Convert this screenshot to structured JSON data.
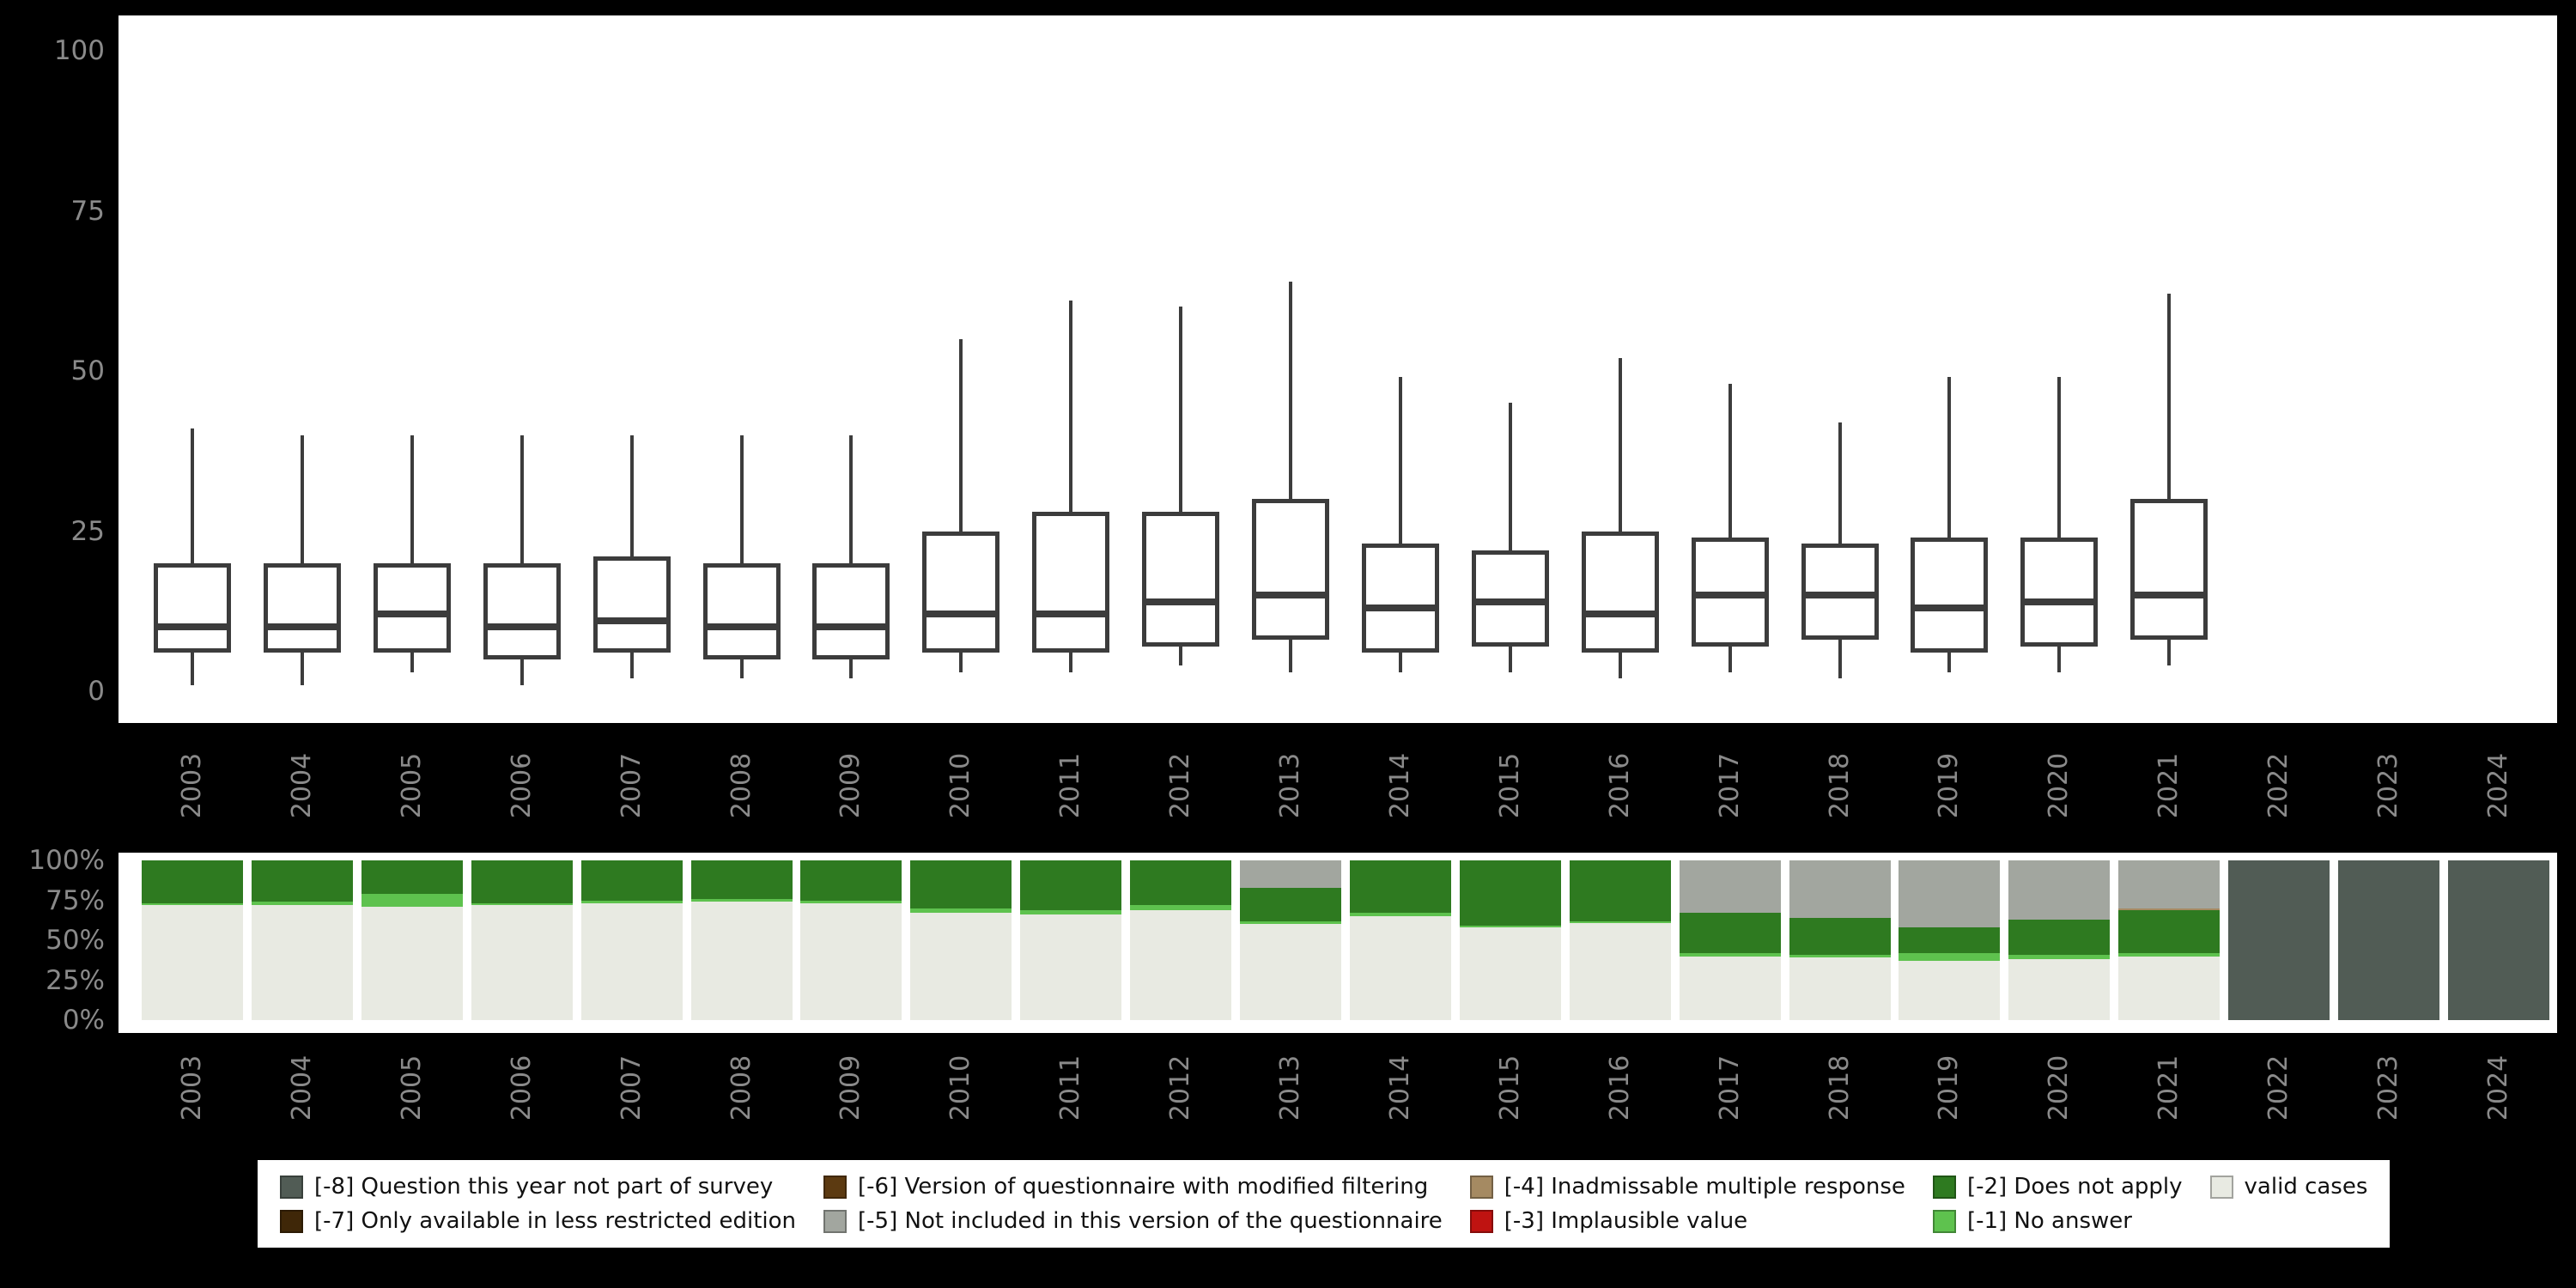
{
  "page": {
    "background": "#000000"
  },
  "colors": {
    "valid": "#e8eae2",
    "no_answer": "#5ec24e",
    "does_not_apply": "#2e7a20",
    "implausible": "#bf1311",
    "inadmissable": "#a58a62",
    "not_included": "#a2a69f",
    "modified_filtering": "#5c3a11",
    "restricted_edition": "#3f2708",
    "not_part_of_survey": "#515c55",
    "box_stroke": "#3c3c3c",
    "axis_text": "#8a8a8a",
    "panel_bg": "#ffffff"
  },
  "chart_data": [
    {
      "type": "boxplot",
      "title": "",
      "xlabel": "",
      "ylabel": "",
      "ylim": [
        0,
        100
      ],
      "yticks": [
        0,
        25,
        50,
        75,
        100
      ],
      "grid": false,
      "categories": [
        "2003",
        "2004",
        "2005",
        "2006",
        "2007",
        "2008",
        "2009",
        "2010",
        "2011",
        "2012",
        "2013",
        "2014",
        "2015",
        "2016",
        "2017",
        "2018",
        "2019",
        "2020",
        "2021",
        "2022",
        "2023",
        "2024"
      ],
      "series": [
        {
          "category": "2003",
          "low": 1,
          "q1": 6,
          "median": 10,
          "q3": 20,
          "high": 41
        },
        {
          "category": "2004",
          "low": 1,
          "q1": 6,
          "median": 10,
          "q3": 20,
          "high": 40
        },
        {
          "category": "2005",
          "low": 3,
          "q1": 6,
          "median": 12,
          "q3": 20,
          "high": 40
        },
        {
          "category": "2006",
          "low": 1,
          "q1": 5,
          "median": 10,
          "q3": 20,
          "high": 40
        },
        {
          "category": "2007",
          "low": 2,
          "q1": 6,
          "median": 11,
          "q3": 21,
          "high": 40
        },
        {
          "category": "2008",
          "low": 2,
          "q1": 5,
          "median": 10,
          "q3": 20,
          "high": 40
        },
        {
          "category": "2009",
          "low": 2,
          "q1": 5,
          "median": 10,
          "q3": 20,
          "high": 40
        },
        {
          "category": "2010",
          "low": 3,
          "q1": 6,
          "median": 12,
          "q3": 25,
          "high": 55
        },
        {
          "category": "2011",
          "low": 3,
          "q1": 6,
          "median": 12,
          "q3": 28,
          "high": 61
        },
        {
          "category": "2012",
          "low": 4,
          "q1": 7,
          "median": 14,
          "q3": 28,
          "high": 60
        },
        {
          "category": "2013",
          "low": 3,
          "q1": 8,
          "median": 15,
          "q3": 30,
          "high": 64
        },
        {
          "category": "2014",
          "low": 3,
          "q1": 6,
          "median": 13,
          "q3": 23,
          "high": 49
        },
        {
          "category": "2015",
          "low": 3,
          "q1": 7,
          "median": 14,
          "q3": 22,
          "high": 45
        },
        {
          "category": "2016",
          "low": 2,
          "q1": 6,
          "median": 12,
          "q3": 25,
          "high": 52
        },
        {
          "category": "2017",
          "low": 3,
          "q1": 7,
          "median": 15,
          "q3": 24,
          "high": 48
        },
        {
          "category": "2018",
          "low": 2,
          "q1": 8,
          "median": 15,
          "q3": 23,
          "high": 42
        },
        {
          "category": "2019",
          "low": 3,
          "q1": 6,
          "median": 13,
          "q3": 24,
          "high": 49
        },
        {
          "category": "2020",
          "low": 3,
          "q1": 7,
          "median": 14,
          "q3": 24,
          "high": 49
        },
        {
          "category": "2021",
          "low": 4,
          "q1": 8,
          "median": 15,
          "q3": 30,
          "high": 62
        },
        null,
        null,
        null
      ]
    },
    {
      "type": "bar",
      "subtype": "stacked-percent",
      "title": "",
      "xlabel": "",
      "ylabel": "",
      "grid": false,
      "yticks": [
        {
          "value": 0,
          "label": "0%"
        },
        {
          "value": 25,
          "label": "25%"
        },
        {
          "value": 50,
          "label": "50%"
        },
        {
          "value": 75,
          "label": "75%"
        },
        {
          "value": 100,
          "label": "100%"
        }
      ],
      "categories": [
        "2003",
        "2004",
        "2005",
        "2006",
        "2007",
        "2008",
        "2009",
        "2010",
        "2011",
        "2012",
        "2013",
        "2014",
        "2015",
        "2016",
        "2017",
        "2018",
        "2019",
        "2020",
        "2021",
        "2022",
        "2023",
        "2024"
      ],
      "stack_order": [
        "valid",
        "no_answer",
        "does_not_apply",
        "implausible",
        "inadmissable",
        "not_included",
        "modified_filtering",
        "restricted_edition",
        "not_part_of_survey"
      ],
      "series": [
        {
          "category": "2003",
          "valid": 72,
          "no_answer": 1,
          "does_not_apply": 27
        },
        {
          "category": "2004",
          "valid": 72,
          "no_answer": 2,
          "does_not_apply": 26
        },
        {
          "category": "2005",
          "valid": 71,
          "no_answer": 8,
          "does_not_apply": 21
        },
        {
          "category": "2006",
          "valid": 72,
          "no_answer": 1,
          "does_not_apply": 27
        },
        {
          "category": "2007",
          "valid": 73,
          "no_answer": 2,
          "does_not_apply": 25
        },
        {
          "category": "2008",
          "valid": 74,
          "no_answer": 2,
          "does_not_apply": 24
        },
        {
          "category": "2009",
          "valid": 73,
          "no_answer": 2,
          "does_not_apply": 25
        },
        {
          "category": "2010",
          "valid": 67,
          "no_answer": 3,
          "does_not_apply": 30
        },
        {
          "category": "2011",
          "valid": 66,
          "no_answer": 3,
          "does_not_apply": 31
        },
        {
          "category": "2012",
          "valid": 69,
          "no_answer": 3,
          "does_not_apply": 28
        },
        {
          "category": "2013",
          "valid": 60,
          "no_answer": 2,
          "does_not_apply": 21,
          "not_included": 17
        },
        {
          "category": "2014",
          "valid": 65,
          "no_answer": 2,
          "does_not_apply": 33
        },
        {
          "category": "2015",
          "valid": 58,
          "no_answer": 1,
          "does_not_apply": 41
        },
        {
          "category": "2016",
          "valid": 61,
          "no_answer": 1,
          "does_not_apply": 38
        },
        {
          "category": "2017",
          "valid": 40,
          "no_answer": 2,
          "does_not_apply": 25,
          "not_included": 33
        },
        {
          "category": "2018",
          "valid": 39,
          "no_answer": 2,
          "does_not_apply": 23,
          "not_included": 36
        },
        {
          "category": "2019",
          "valid": 37,
          "no_answer": 5,
          "does_not_apply": 16,
          "not_included": 42
        },
        {
          "category": "2020",
          "valid": 38,
          "no_answer": 3,
          "does_not_apply": 22,
          "not_included": 37
        },
        {
          "category": "2021",
          "valid": 40,
          "no_answer": 2,
          "does_not_apply": 27,
          "inadmissable": 1,
          "not_included": 30
        },
        {
          "category": "2022",
          "not_part_of_survey": 100
        },
        {
          "category": "2023",
          "not_part_of_survey": 100
        },
        {
          "category": "2024",
          "not_part_of_survey": 100
        }
      ]
    }
  ],
  "legend": {
    "items": [
      {
        "key": "not_part_of_survey",
        "label": "[-8] Question this year not part of survey"
      },
      {
        "key": "restricted_edition",
        "label": "[-7] Only available in less restricted edition"
      },
      {
        "key": "modified_filtering",
        "label": "[-6] Version of questionnaire with modified filtering"
      },
      {
        "key": "not_included",
        "label": "[-5] Not included in this version of the questionnaire"
      },
      {
        "key": "inadmissable",
        "label": "[-4] Inadmissable multiple response"
      },
      {
        "key": "implausible",
        "label": "[-3] Implausible value"
      },
      {
        "key": "does_not_apply",
        "label": "[-2] Does not apply"
      },
      {
        "key": "no_answer",
        "label": "[-1] No answer"
      },
      {
        "key": "valid",
        "label": "valid cases"
      }
    ]
  }
}
